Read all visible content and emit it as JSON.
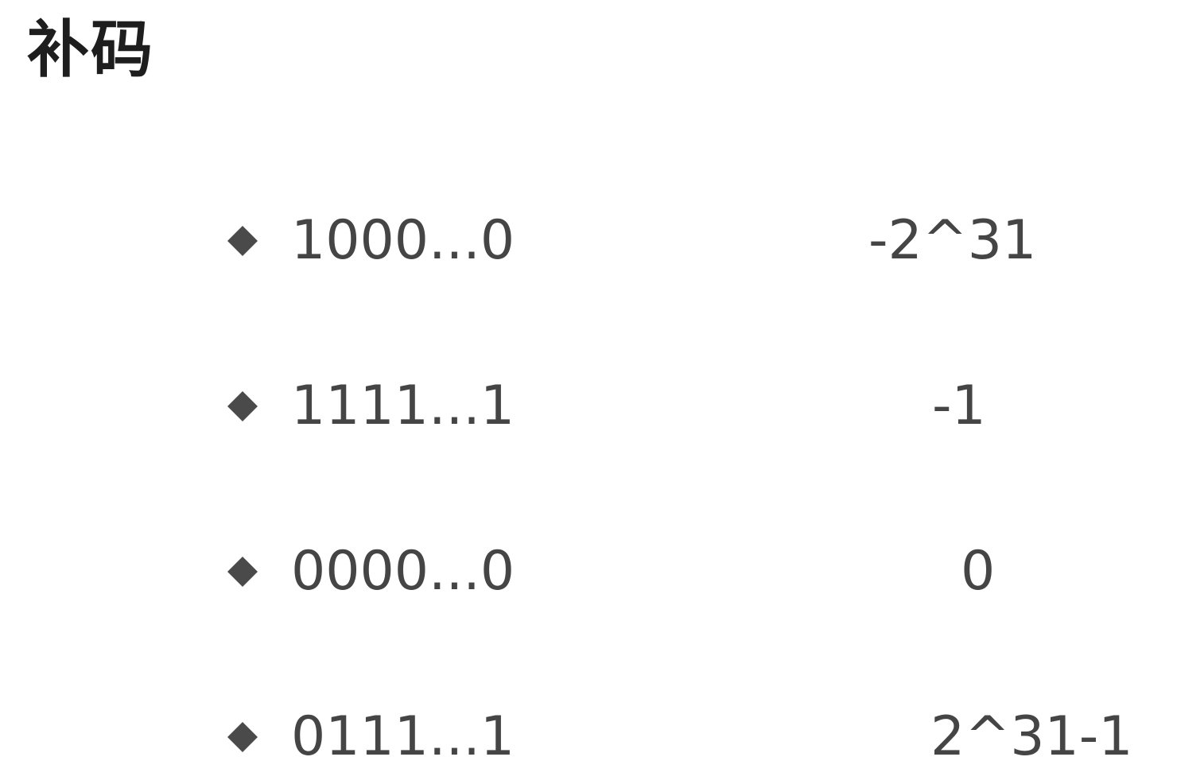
{
  "title": "补码",
  "colors": {
    "title": "#1e1e1e",
    "text": "#454545",
    "bullet": "#4a4a4a"
  },
  "bullet_icon": "diamond-icon",
  "rows": [
    {
      "bits": "1000...0",
      "value": "-2^31"
    },
    {
      "bits": "1111...1",
      "value": "-1"
    },
    {
      "bits": "0000...0",
      "value": "0"
    },
    {
      "bits": "0111...1",
      "value": "2^31-1"
    }
  ]
}
